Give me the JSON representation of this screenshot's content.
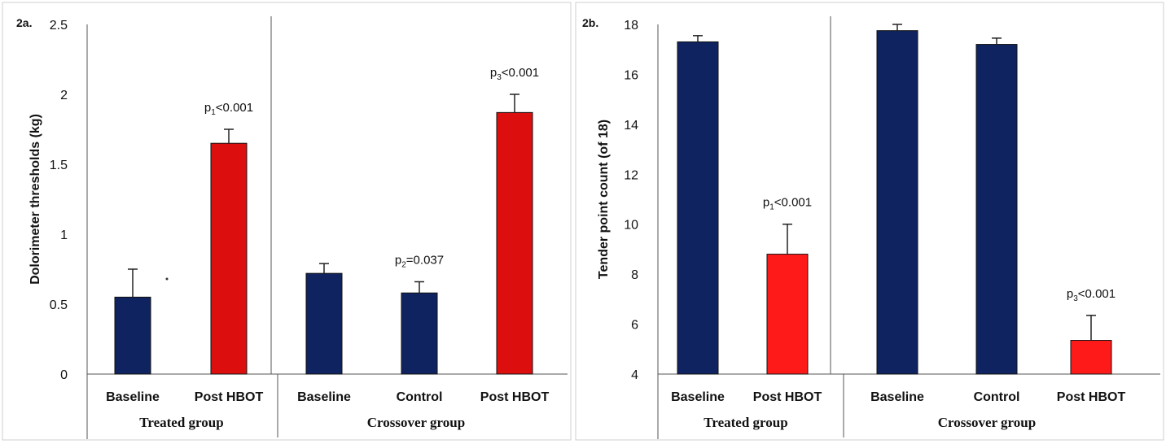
{
  "colors": {
    "baseline": "#0f2360",
    "hbot": "#dd0e0e",
    "hbot_bright": "#ff1a1a",
    "axis": "#555555"
  },
  "chart_data": [
    {
      "type": "bar",
      "panel_label": "2a.",
      "ylabel": "Dolorimeter thresholds (kg)",
      "ylim": [
        0,
        2.5
      ],
      "yticks": [
        "0",
        "0.5",
        "1",
        "1.5",
        "2",
        "2.5"
      ],
      "categories": [
        "Baseline",
        "Post HBOT",
        "Baseline",
        "Control",
        "Post HBOT"
      ],
      "values": [
        0.55,
        1.65,
        0.72,
        0.58,
        1.87
      ],
      "errors": [
        0.2,
        0.1,
        0.07,
        0.08,
        0.13
      ],
      "bar_colors": [
        "baseline",
        "hbot",
        "baseline",
        "baseline",
        "hbot"
      ],
      "groups": [
        {
          "label": "Treated group",
          "categories": [
            0,
            1
          ]
        },
        {
          "label": "Crossover group",
          "categories": [
            2,
            3,
            4
          ]
        }
      ],
      "annotations": [
        {
          "bar": 1,
          "prefix": "p",
          "sub": "1",
          "rest": "<0.001"
        },
        {
          "bar": 3,
          "prefix": "p",
          "sub": "2",
          "rest": "=0.037"
        },
        {
          "bar": 4,
          "prefix": "p",
          "sub": "3",
          "rest": "<0.001"
        }
      ],
      "grid": false
    },
    {
      "type": "bar",
      "panel_label": "2b.",
      "ylabel": "Tender point count (of 18)",
      "ylim": [
        4,
        18
      ],
      "yticks": [
        "4",
        "6",
        "8",
        "10",
        "12",
        "14",
        "16",
        "18"
      ],
      "categories": [
        "Baseline",
        "Post HBOT",
        "Baseline",
        "Control",
        "Post HBOT"
      ],
      "values": [
        17.3,
        8.8,
        17.75,
        17.2,
        5.35
      ],
      "errors": [
        0.25,
        1.2,
        0.25,
        0.25,
        1.0
      ],
      "bar_colors": [
        "baseline",
        "hbot_bright",
        "baseline",
        "baseline",
        "hbot_bright"
      ],
      "groups": [
        {
          "label": "Treated group",
          "categories": [
            0,
            1
          ]
        },
        {
          "label": "Crossover group",
          "categories": [
            2,
            3,
            4
          ]
        }
      ],
      "annotations": [
        {
          "bar": 1,
          "prefix": "p",
          "sub": "1",
          "rest": "<0.001"
        },
        {
          "bar": 4,
          "prefix": "p",
          "sub": "3",
          "rest": "<0.001"
        }
      ],
      "grid": false
    }
  ]
}
